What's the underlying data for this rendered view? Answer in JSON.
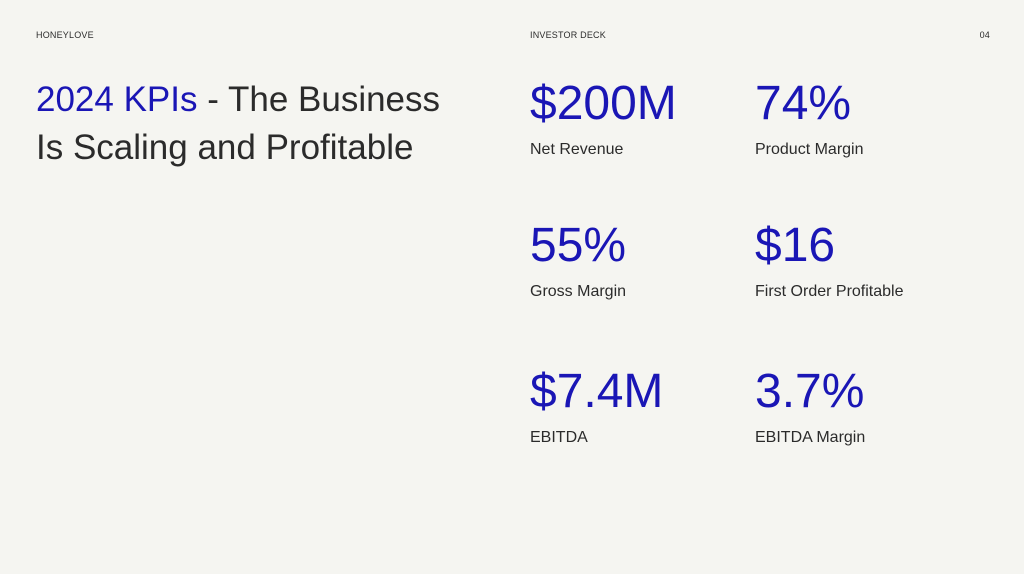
{
  "header": {
    "brand": "HONEYLOVE",
    "deck": "INVESTOR DECK",
    "page_number": "04"
  },
  "title": {
    "accent": "2024 KPIs",
    "rest": " - The Business Is Scaling and Profitable"
  },
  "kpis": [
    {
      "value": "$200M",
      "label": "Net Revenue"
    },
    {
      "value": "74%",
      "label": "Product Margin"
    },
    {
      "value": "55%",
      "label": "Gross Margin"
    },
    {
      "value": "$16",
      "label": "First Order Profitable"
    },
    {
      "value": "$7.4M",
      "label": "EBITDA"
    },
    {
      "value": "3.7%",
      "label": "EBITDA Margin"
    }
  ],
  "colors": {
    "accent": "#1a16b5",
    "text": "#2b2b2b",
    "background": "#f5f5f1"
  }
}
